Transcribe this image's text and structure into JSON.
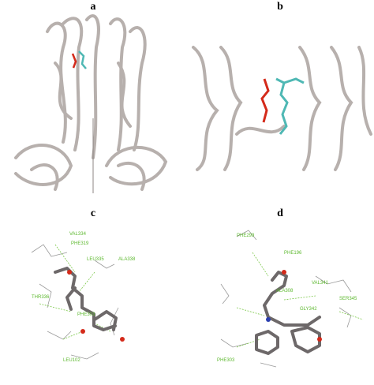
{
  "panels": [
    {
      "label": "a"
    },
    {
      "label": "b"
    },
    {
      "label": "c",
      "residues": [
        "VAL334",
        "PHE319",
        "LEU335",
        "ALA338",
        "THR336",
        "PHE303",
        "LEU102"
      ]
    },
    {
      "label": "d",
      "residues": [
        "PHE299",
        "PHE196",
        "ALA308",
        "VAL341",
        "SER345",
        "GLY342",
        "PHE303"
      ]
    }
  ]
}
